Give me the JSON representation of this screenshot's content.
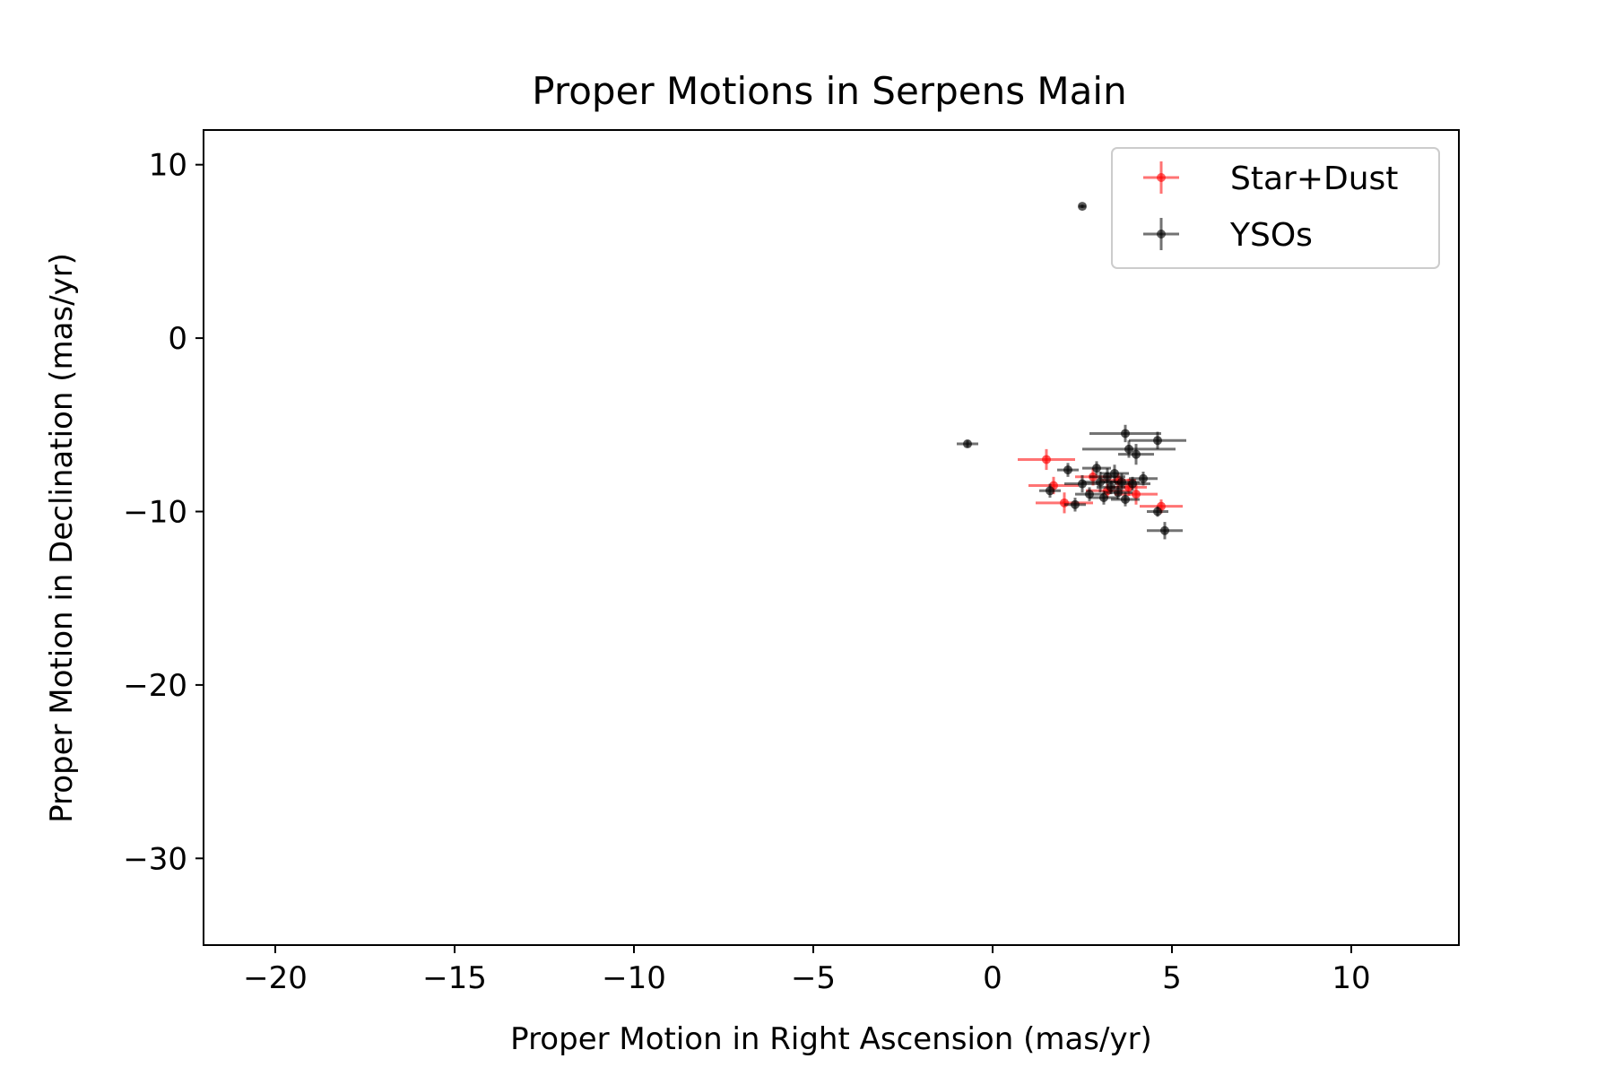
{
  "chart_data": {
    "type": "scatter",
    "title": "Proper Motions in Serpens Main",
    "xlabel": "Proper Motion in Right Ascension (mas/yr)",
    "ylabel": "Proper Motion in Declination (mas/yr)",
    "xlim": [
      -22,
      13
    ],
    "ylim": [
      -35,
      12
    ],
    "xticks": [
      -20,
      -15,
      -10,
      -5,
      0,
      5,
      10
    ],
    "xtick_labels": [
      "−20",
      "−15",
      "−10",
      "−5",
      "0",
      "5",
      "10"
    ],
    "yticks": [
      10,
      0,
      -10,
      -20,
      -30
    ],
    "ytick_labels": [
      "10",
      "0",
      "−10",
      "−20",
      "−30"
    ],
    "grid": false,
    "legend": "top-right",
    "series": [
      {
        "name": "Star+Dust",
        "color": "#ff0000",
        "points": [
          {
            "x": 1.5,
            "y": -7.0,
            "xerr": 0.8,
            "yerr": 0.6
          },
          {
            "x": 1.7,
            "y": -8.5,
            "xerr": 0.7,
            "yerr": 0.5
          },
          {
            "x": 2.0,
            "y": -9.5,
            "xerr": 0.8,
            "yerr": 0.6
          },
          {
            "x": 2.8,
            "y": -8.0,
            "xerr": 0.5,
            "yerr": 0.5
          },
          {
            "x": 3.2,
            "y": -8.8,
            "xerr": 0.6,
            "yerr": 0.4
          },
          {
            "x": 3.5,
            "y": -8.2,
            "xerr": 0.5,
            "yerr": 0.4
          },
          {
            "x": 3.8,
            "y": -8.6,
            "xerr": 0.5,
            "yerr": 0.5
          },
          {
            "x": 4.0,
            "y": -9.0,
            "xerr": 0.6,
            "yerr": 0.6
          },
          {
            "x": 4.7,
            "y": -9.7,
            "xerr": 0.6,
            "yerr": 0.4
          }
        ]
      },
      {
        "name": "YSOs",
        "color": "#000000",
        "points": [
          {
            "x": 2.5,
            "y": 7.6,
            "xerr": 0.1,
            "yerr": 0.1
          },
          {
            "x": -0.7,
            "y": -6.1,
            "xerr": 0.3,
            "yerr": 0.2
          },
          {
            "x": 1.6,
            "y": -8.8,
            "xerr": 0.3,
            "yerr": 0.4
          },
          {
            "x": 2.1,
            "y": -7.6,
            "xerr": 0.3,
            "yerr": 0.4
          },
          {
            "x": 2.3,
            "y": -9.6,
            "xerr": 0.3,
            "yerr": 0.4
          },
          {
            "x": 2.5,
            "y": -8.4,
            "xerr": 0.5,
            "yerr": 0.5
          },
          {
            "x": 2.7,
            "y": -9.0,
            "xerr": 0.4,
            "yerr": 0.4
          },
          {
            "x": 2.9,
            "y": -7.5,
            "xerr": 0.4,
            "yerr": 0.4
          },
          {
            "x": 3.0,
            "y": -8.3,
            "xerr": 0.5,
            "yerr": 0.6
          },
          {
            "x": 3.1,
            "y": -9.2,
            "xerr": 0.4,
            "yerr": 0.4
          },
          {
            "x": 3.2,
            "y": -8.0,
            "xerr": 0.5,
            "yerr": 0.5
          },
          {
            "x": 3.3,
            "y": -8.6,
            "xerr": 0.4,
            "yerr": 0.4
          },
          {
            "x": 3.4,
            "y": -7.8,
            "xerr": 0.4,
            "yerr": 0.5
          },
          {
            "x": 3.5,
            "y": -8.9,
            "xerr": 0.4,
            "yerr": 0.4
          },
          {
            "x": 3.6,
            "y": -8.3,
            "xerr": 0.5,
            "yerr": 0.5
          },
          {
            "x": 3.7,
            "y": -5.5,
            "xerr": 1.0,
            "yerr": 0.5
          },
          {
            "x": 3.8,
            "y": -6.4,
            "xerr": 1.3,
            "yerr": 0.5
          },
          {
            "x": 3.7,
            "y": -9.3,
            "xerr": 0.4,
            "yerr": 0.4
          },
          {
            "x": 3.9,
            "y": -8.4,
            "xerr": 0.5,
            "yerr": 0.4
          },
          {
            "x": 4.0,
            "y": -6.7,
            "xerr": 0.5,
            "yerr": 0.6
          },
          {
            "x": 4.2,
            "y": -8.1,
            "xerr": 0.4,
            "yerr": 0.4
          },
          {
            "x": 4.6,
            "y": -5.9,
            "xerr": 0.8,
            "yerr": 0.5
          },
          {
            "x": 4.6,
            "y": -10.0,
            "xerr": 0.3,
            "yerr": 0.3
          },
          {
            "x": 4.8,
            "y": -11.1,
            "xerr": 0.5,
            "yerr": 0.5
          }
        ]
      }
    ]
  }
}
